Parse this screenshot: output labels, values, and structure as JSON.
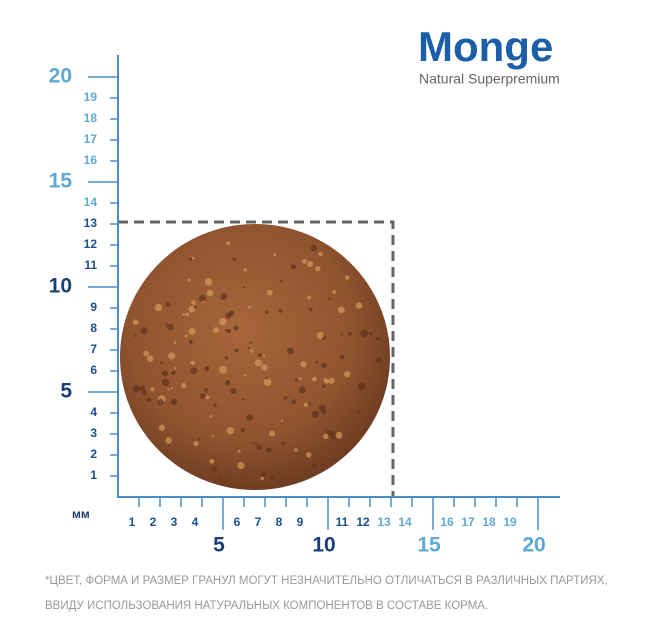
{
  "logo": {
    "brand": "Monge",
    "tagline": "Natural Superpremium"
  },
  "unit": "мм",
  "y_axis": {
    "near_minor": [
      1,
      2,
      3,
      4,
      6,
      7,
      8,
      9,
      11,
      12,
      13
    ],
    "far_minor": [
      14,
      16,
      17,
      18,
      19
    ],
    "near_major": [
      5,
      10
    ],
    "far_major": [
      15,
      20
    ]
  },
  "x_axis": {
    "near_minor": [
      1,
      2,
      3,
      4,
      6,
      7,
      8,
      9,
      11,
      12
    ],
    "far_minor": [
      13,
      14,
      16,
      17,
      18,
      19
    ],
    "near_major": [
      5,
      10
    ],
    "far_major": [
      15,
      20
    ]
  },
  "footnote": [
    "*ЦВЕТ, ФОРМА И РАЗМЕР ГРАНУЛ МОГУТ НЕЗНАЧИТЕЛЬНО ОТЛИЧАТЬСЯ В РАЗЛИЧНЫХ ПАРТИЯХ,",
    "ВВИДУ ИСПОЛЬЗОВАНИЯ НАТУРАЛЬНЫХ КОМПОНЕНТОВ В СОСТАВЕ КОРМА."
  ]
}
